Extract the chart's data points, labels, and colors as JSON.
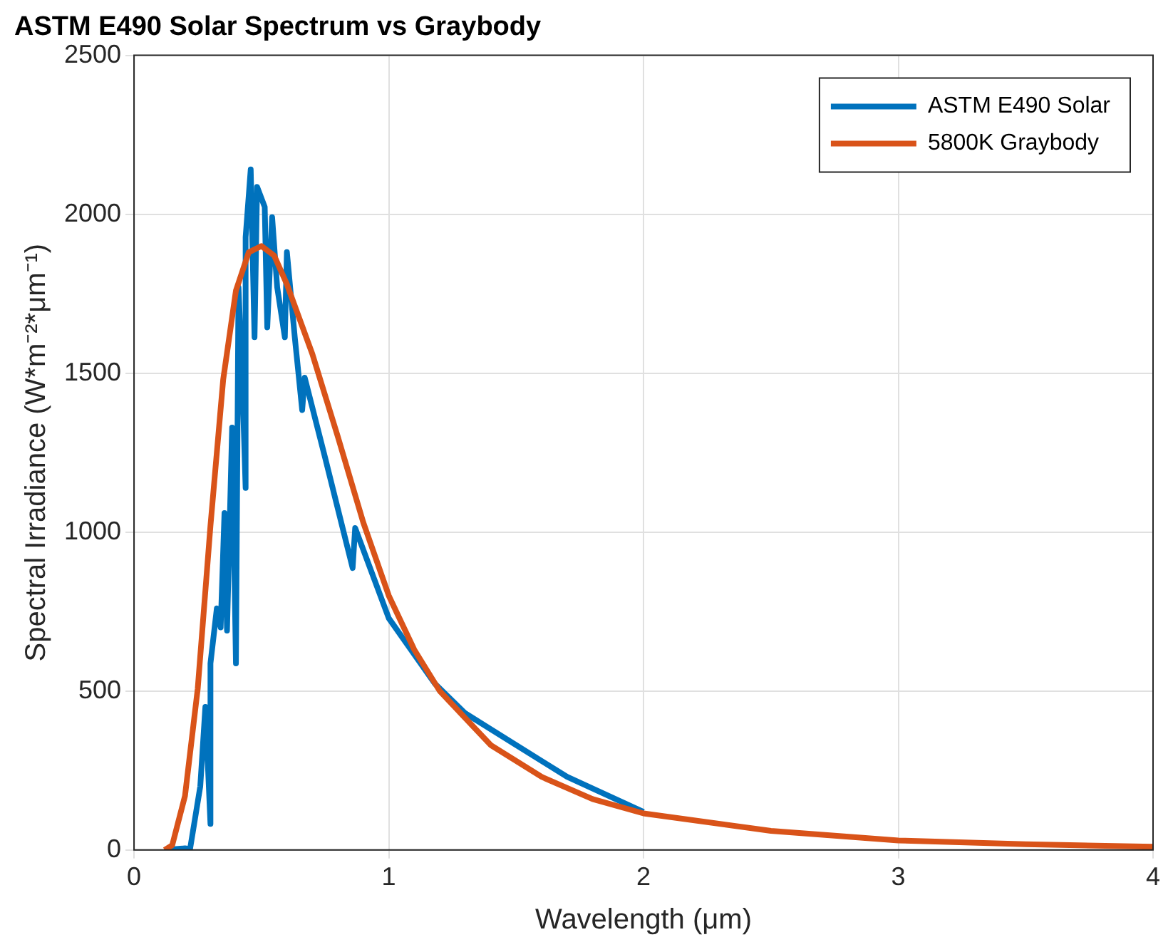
{
  "chart_data": {
    "type": "line",
    "title": "ASTM E490 Solar Spectrum vs Graybody",
    "xlabel": "Wavelength (μm)",
    "ylabel": "Spectral Irradiance (W*m⁻²*μm⁻¹)",
    "xlim": [
      0,
      4
    ],
    "xticks": [
      0,
      1,
      2,
      3,
      4
    ],
    "ylim": [
      0,
      2500
    ],
    "yticks": [
      0,
      500,
      1000,
      1500,
      2000,
      2500
    ],
    "grid": true,
    "legend": "top right",
    "marker": "none",
    "line_style": "solid",
    "series": [
      {
        "name": "ASTM E490 Solar",
        "color": "#0072bd",
        "x": [
          0.12,
          0.2,
          0.22,
          0.26,
          0.28,
          0.3,
          0.3,
          0.325,
          0.34,
          0.355,
          0.365,
          0.385,
          0.4,
          0.41,
          0.424,
          0.438,
          0.438,
          0.458,
          0.473,
          0.483,
          0.513,
          0.523,
          0.542,
          0.562,
          0.592,
          0.6,
          0.631,
          0.66,
          0.67,
          0.75,
          0.858,
          0.868,
          1.0,
          1.18,
          1.3,
          1.5,
          1.7,
          2.0
        ],
        "values": [
          0,
          5,
          3,
          200,
          450,
          82,
          587,
          760,
          700,
          1060,
          690,
          1329,
          587,
          1770,
          1502,
          1139,
          1928,
          2141,
          1613,
          2086,
          2023,
          1644,
          1991,
          1770,
          1613,
          1881,
          1613,
          1384,
          1486,
          1234,
          887,
          1013,
          729,
          524,
          430,
          330,
          230,
          120
        ]
      },
      {
        "name": "5800K Graybody",
        "color": "#d95319",
        "x": [
          0.12,
          0.15,
          0.2,
          0.25,
          0.3,
          0.35,
          0.4,
          0.45,
          0.5,
          0.55,
          0.6,
          0.7,
          0.8,
          0.9,
          1.0,
          1.1,
          1.2,
          1.4,
          1.6,
          1.8,
          2.0,
          2.5,
          3.0,
          3.5,
          4.0
        ],
        "values": [
          0,
          15,
          170,
          507,
          1020,
          1480,
          1760,
          1880,
          1900,
          1870,
          1780,
          1560,
          1300,
          1030,
          800,
          630,
          500,
          330,
          230,
          160,
          115,
          60,
          30,
          18,
          10
        ]
      }
    ]
  }
}
